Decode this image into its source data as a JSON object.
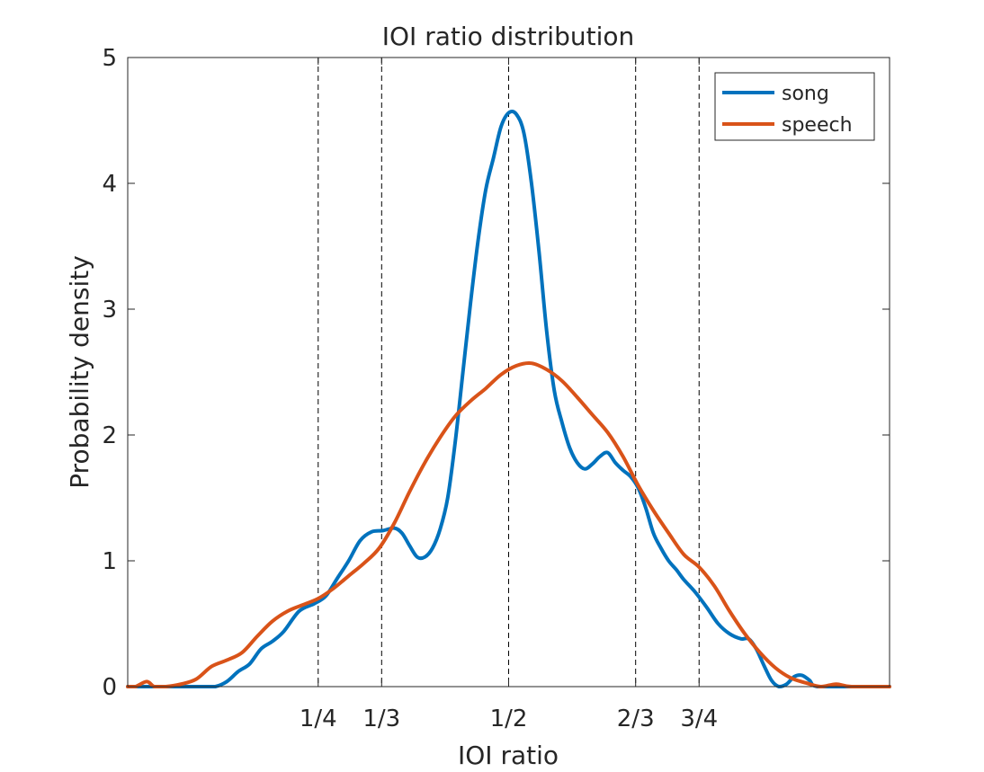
{
  "chart_data": {
    "type": "line",
    "title": "IOI ratio distribution",
    "xlabel": "IOI ratio",
    "ylabel": "Probability density",
    "xlim": [
      0,
      1
    ],
    "ylim": [
      0,
      5
    ],
    "yticks": [
      0,
      1,
      2,
      3,
      4,
      5
    ],
    "xticks": [
      {
        "value": 0.25,
        "label": "1/4"
      },
      {
        "value": 0.3333,
        "label": "1/3"
      },
      {
        "value": 0.5,
        "label": "1/2"
      },
      {
        "value": 0.6667,
        "label": "2/3"
      },
      {
        "value": 0.75,
        "label": "3/4"
      }
    ],
    "reference_lines": [
      0.25,
      0.3333,
      0.5,
      0.6667,
      0.75
    ],
    "legend_position": "top-right",
    "grid": false,
    "series": [
      {
        "name": "song",
        "color": "#0072BD",
        "points": [
          [
            0,
            0
          ],
          [
            0.05,
            0
          ],
          [
            0.1,
            0
          ],
          [
            0.115,
            0
          ],
          [
            0.13,
            0.04
          ],
          [
            0.145,
            0.12
          ],
          [
            0.16,
            0.18
          ],
          [
            0.175,
            0.3
          ],
          [
            0.19,
            0.36
          ],
          [
            0.205,
            0.44
          ],
          [
            0.225,
            0.6
          ],
          [
            0.245,
            0.66
          ],
          [
            0.26,
            0.72
          ],
          [
            0.275,
            0.86
          ],
          [
            0.29,
            1.0
          ],
          [
            0.305,
            1.16
          ],
          [
            0.32,
            1.23
          ],
          [
            0.335,
            1.24
          ],
          [
            0.35,
            1.26
          ],
          [
            0.36,
            1.22
          ],
          [
            0.37,
            1.12
          ],
          [
            0.38,
            1.03
          ],
          [
            0.39,
            1.03
          ],
          [
            0.4,
            1.1
          ],
          [
            0.41,
            1.25
          ],
          [
            0.42,
            1.5
          ],
          [
            0.43,
            1.95
          ],
          [
            0.44,
            2.5
          ],
          [
            0.45,
            3.05
          ],
          [
            0.46,
            3.55
          ],
          [
            0.47,
            3.95
          ],
          [
            0.48,
            4.2
          ],
          [
            0.49,
            4.45
          ],
          [
            0.5,
            4.56
          ],
          [
            0.51,
            4.55
          ],
          [
            0.52,
            4.4
          ],
          [
            0.53,
            4.0
          ],
          [
            0.54,
            3.45
          ],
          [
            0.55,
            2.82
          ],
          [
            0.56,
            2.35
          ],
          [
            0.57,
            2.1
          ],
          [
            0.58,
            1.9
          ],
          [
            0.59,
            1.78
          ],
          [
            0.6,
            1.73
          ],
          [
            0.61,
            1.77
          ],
          [
            0.62,
            1.83
          ],
          [
            0.63,
            1.86
          ],
          [
            0.64,
            1.78
          ],
          [
            0.65,
            1.72
          ],
          [
            0.66,
            1.67
          ],
          [
            0.67,
            1.58
          ],
          [
            0.68,
            1.42
          ],
          [
            0.69,
            1.22
          ],
          [
            0.7,
            1.1
          ],
          [
            0.71,
            1.0
          ],
          [
            0.72,
            0.93
          ],
          [
            0.73,
            0.85
          ],
          [
            0.745,
            0.75
          ],
          [
            0.76,
            0.63
          ],
          [
            0.775,
            0.5
          ],
          [
            0.79,
            0.42
          ],
          [
            0.805,
            0.38
          ],
          [
            0.815,
            0.38
          ],
          [
            0.825,
            0.3
          ],
          [
            0.835,
            0.17
          ],
          [
            0.845,
            0.05
          ],
          [
            0.855,
            0.0
          ],
          [
            0.865,
            0.02
          ],
          [
            0.875,
            0.08
          ],
          [
            0.885,
            0.09
          ],
          [
            0.895,
            0.05
          ],
          [
            0.905,
            0.0
          ],
          [
            0.95,
            0.0
          ],
          [
            1.0,
            0.0
          ]
        ]
      },
      {
        "name": "speech",
        "color": "#D95319",
        "points": [
          [
            0,
            0
          ],
          [
            0.01,
            0.0
          ],
          [
            0.025,
            0.04
          ],
          [
            0.035,
            0.0
          ],
          [
            0.05,
            0.0
          ],
          [
            0.07,
            0.02
          ],
          [
            0.09,
            0.06
          ],
          [
            0.11,
            0.16
          ],
          [
            0.13,
            0.21
          ],
          [
            0.15,
            0.27
          ],
          [
            0.17,
            0.4
          ],
          [
            0.19,
            0.52
          ],
          [
            0.21,
            0.6
          ],
          [
            0.23,
            0.65
          ],
          [
            0.25,
            0.7
          ],
          [
            0.27,
            0.78
          ],
          [
            0.29,
            0.88
          ],
          [
            0.31,
            0.98
          ],
          [
            0.33,
            1.1
          ],
          [
            0.35,
            1.3
          ],
          [
            0.37,
            1.55
          ],
          [
            0.39,
            1.78
          ],
          [
            0.41,
            1.98
          ],
          [
            0.43,
            2.15
          ],
          [
            0.45,
            2.27
          ],
          [
            0.47,
            2.37
          ],
          [
            0.49,
            2.48
          ],
          [
            0.51,
            2.55
          ],
          [
            0.53,
            2.57
          ],
          [
            0.55,
            2.52
          ],
          [
            0.57,
            2.43
          ],
          [
            0.59,
            2.3
          ],
          [
            0.61,
            2.16
          ],
          [
            0.63,
            2.02
          ],
          [
            0.65,
            1.83
          ],
          [
            0.67,
            1.6
          ],
          [
            0.69,
            1.4
          ],
          [
            0.71,
            1.22
          ],
          [
            0.73,
            1.05
          ],
          [
            0.75,
            0.95
          ],
          [
            0.77,
            0.8
          ],
          [
            0.79,
            0.6
          ],
          [
            0.81,
            0.42
          ],
          [
            0.83,
            0.27
          ],
          [
            0.85,
            0.15
          ],
          [
            0.87,
            0.07
          ],
          [
            0.89,
            0.03
          ],
          [
            0.91,
            0.0
          ],
          [
            0.93,
            0.02
          ],
          [
            0.95,
            0.0
          ],
          [
            1.0,
            0.0
          ]
        ]
      }
    ]
  }
}
